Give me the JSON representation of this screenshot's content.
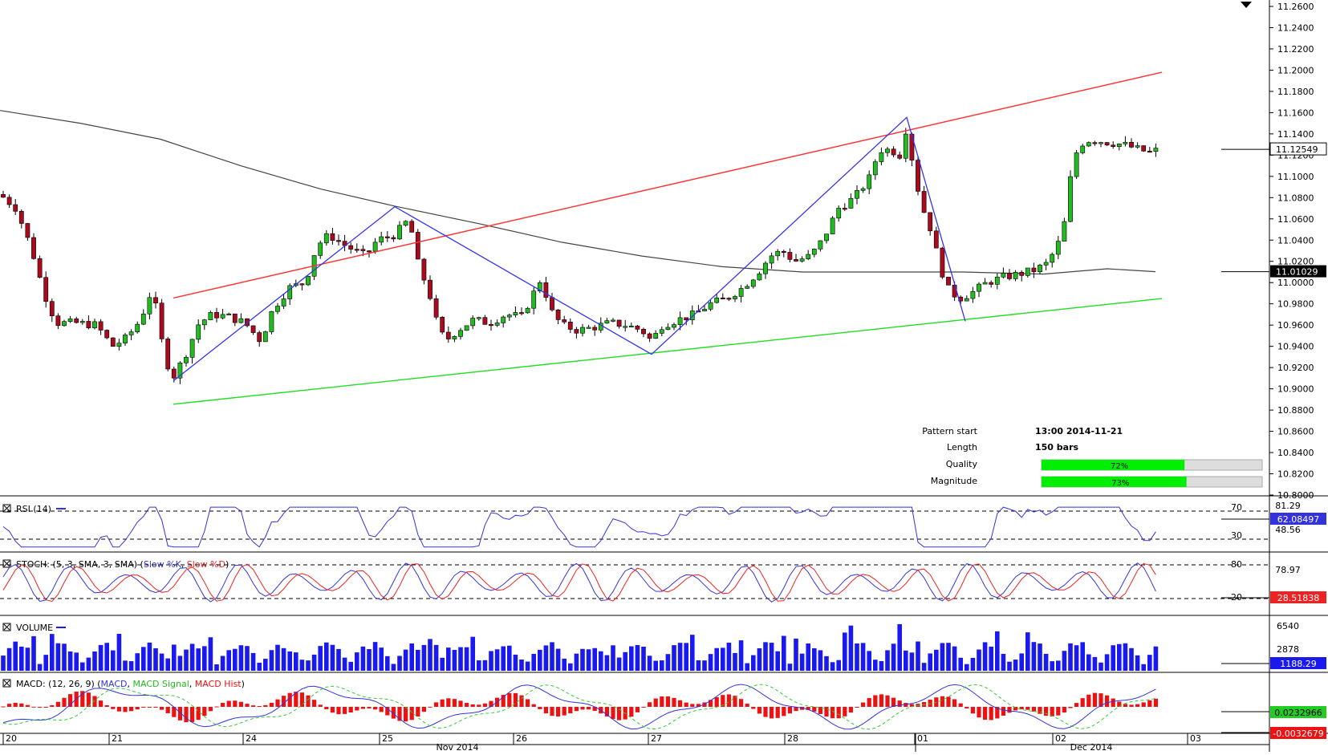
{
  "chart_data": {
    "type": "candlestick",
    "main": {
      "y_ticks": [
        "11.2600",
        "11.2400",
        "11.2200",
        "11.2000",
        "11.1800",
        "11.1600",
        "11.1400",
        "11.1200",
        "11.1000",
        "11.0800",
        "11.0600",
        "11.0400",
        "11.0200",
        "11.0000",
        "10.9800",
        "10.9600",
        "10.9400",
        "10.9200",
        "10.9000",
        "10.8800",
        "10.8600",
        "10.8400",
        "10.8200",
        "10.8000"
      ],
      "ylim": [
        10.8,
        11.26
      ],
      "last_price_label": "11.12549",
      "sma_label": "11.01029",
      "last_price": 11.1255,
      "sma_value": 11.0103,
      "pattern_lines": {
        "resistance": {
          "from": [
            0,
            10.9855
          ],
          "to": [
            150,
            11.1455
          ],
          "extend_to": [
            1440,
            11.198
          ],
          "color": "#ff3333"
        },
        "support": {
          "from": [
            216,
            10.8855
          ],
          "to": [
            1448,
            10.985
          ],
          "color": "#22dd22"
        }
      },
      "zigzag": [
        [
          216,
          10.9075
        ],
        [
          492,
          11.0715
        ],
        [
          812,
          10.9325
        ],
        [
          1130,
          11.1555
        ],
        [
          1203,
          10.9635
        ]
      ],
      "zigzag_color": "#3333ee"
    },
    "info": {
      "pattern_start_label": "Pattern start",
      "pattern_start_value": "13:00 2014-11-21",
      "length_label": "Length",
      "length_value": "150 bars",
      "quality_label": "Quality",
      "quality_value": "72%",
      "quality_fraction": 0.72,
      "magnitude_label": "Magnitude",
      "magnitude_value": "73%",
      "magnitude_fraction": 0.73
    },
    "rsi": {
      "title": "RSI (14)",
      "level_hi": "70",
      "level_lo": "30",
      "tick_hi": "81.29",
      "tick_lo": "48.56",
      "value_label": "62.08497"
    },
    "stoch": {
      "title_prefix": "STOCH: (5, 3, SMA, 3, SMA) (",
      "k_name": "Slow %K",
      "sep": ", ",
      "d_name": "Slow %D",
      "title_suffix": ")",
      "level_hi": "80",
      "level_lo": "20",
      "tick_hi": "78.97",
      "value_label": "28.51838"
    },
    "volume": {
      "title": "VOLUME",
      "tick_hi": "6540",
      "tick_lo": "2878",
      "value_label": "1188.29"
    },
    "macd": {
      "title_prefix": "MACD: (12, 26, 9) (",
      "macd_name": "MACD",
      "sep1": ", ",
      "signal_name": "MACD Signal",
      "sep2": ", ",
      "hist_name": "MACD Hist",
      "title_suffix": ")",
      "value_macd": "0.0232966",
      "value_hist": "-0.0032679"
    },
    "x_axis": {
      "day_ticks": [
        "20",
        "21",
        "24",
        "25",
        "26",
        "27",
        "28",
        "01",
        "02",
        "03"
      ],
      "month_labels": [
        "Nov 2014",
        "Dec 2014"
      ]
    },
    "colors": {
      "bull": "#22bb22",
      "bear": "#aa0a1e",
      "sma": "#444444",
      "rsi": "#3333dd",
      "k": "#3333dd",
      "d": "#ee2222",
      "volume": "#1a1aee",
      "macd": "#3333dd",
      "signal": "#33cc33",
      "hist": "#ee1111"
    }
  }
}
